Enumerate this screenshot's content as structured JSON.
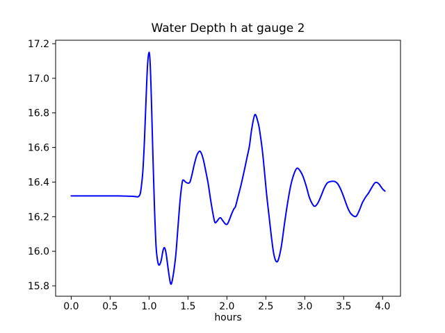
{
  "figure": {
    "background": "#ffffff",
    "text_color": "#000000"
  },
  "chart_data": {
    "type": "line",
    "title": "Water Depth h at gauge 2",
    "xlabel": "hours",
    "ylabel": "",
    "xlim": [
      -0.2,
      4.23
    ],
    "ylim": [
      15.74,
      17.22
    ],
    "xticks": [
      0.0,
      0.5,
      1.0,
      1.5,
      2.0,
      2.5,
      3.0,
      3.5,
      4.0
    ],
    "xtick_labels": [
      "0.0",
      "0.5",
      "1.0",
      "1.5",
      "2.0",
      "2.5",
      "3.0",
      "3.5",
      "4.0"
    ],
    "yticks": [
      15.8,
      16.0,
      16.2,
      16.4,
      16.6,
      16.8,
      17.0,
      17.2
    ],
    "ytick_labels": [
      "15.8",
      "16.0",
      "16.2",
      "16.4",
      "16.6",
      "16.8",
      "17.0",
      "17.2"
    ],
    "grid": false,
    "legend": null,
    "series": [
      {
        "name": "h",
        "color": "#0000ff",
        "line_width": 2,
        "points": [
          [
            0.0,
            16.32
          ],
          [
            0.1,
            16.32
          ],
          [
            0.2,
            16.32
          ],
          [
            0.3,
            16.32
          ],
          [
            0.4,
            16.32
          ],
          [
            0.5,
            16.32
          ],
          [
            0.6,
            16.32
          ],
          [
            0.7,
            16.319
          ],
          [
            0.78,
            16.318
          ],
          [
            0.83,
            16.316
          ],
          [
            0.86,
            16.315
          ],
          [
            0.885,
            16.33
          ],
          [
            0.9,
            16.37
          ],
          [
            0.92,
            16.46
          ],
          [
            0.94,
            16.63
          ],
          [
            0.96,
            16.86
          ],
          [
            0.98,
            17.07
          ],
          [
            1.0,
            17.15
          ],
          [
            1.015,
            17.08
          ],
          [
            1.03,
            16.88
          ],
          [
            1.05,
            16.55
          ],
          [
            1.07,
            16.25
          ],
          [
            1.09,
            16.03
          ],
          [
            1.11,
            15.945
          ],
          [
            1.13,
            15.92
          ],
          [
            1.155,
            15.945
          ],
          [
            1.18,
            16.005
          ],
          [
            1.2,
            16.02
          ],
          [
            1.22,
            15.985
          ],
          [
            1.245,
            15.9
          ],
          [
            1.27,
            15.825
          ],
          [
            1.285,
            15.81
          ],
          [
            1.3,
            15.835
          ],
          [
            1.32,
            15.89
          ],
          [
            1.345,
            15.985
          ],
          [
            1.37,
            16.13
          ],
          [
            1.4,
            16.3
          ],
          [
            1.425,
            16.395
          ],
          [
            1.44,
            16.412
          ],
          [
            1.47,
            16.4
          ],
          [
            1.5,
            16.394
          ],
          [
            1.525,
            16.4
          ],
          [
            1.55,
            16.44
          ],
          [
            1.58,
            16.5
          ],
          [
            1.61,
            16.55
          ],
          [
            1.635,
            16.573
          ],
          [
            1.655,
            16.578
          ],
          [
            1.675,
            16.563
          ],
          [
            1.7,
            16.525
          ],
          [
            1.73,
            16.46
          ],
          [
            1.76,
            16.39
          ],
          [
            1.79,
            16.3
          ],
          [
            1.82,
            16.22
          ],
          [
            1.845,
            16.168
          ],
          [
            1.87,
            16.172
          ],
          [
            1.9,
            16.19
          ],
          [
            1.92,
            16.193
          ],
          [
            1.95,
            16.175
          ],
          [
            1.98,
            16.158
          ],
          [
            2.005,
            16.157
          ],
          [
            2.03,
            16.18
          ],
          [
            2.06,
            16.215
          ],
          [
            2.09,
            16.245
          ],
          [
            2.11,
            16.258
          ],
          [
            2.14,
            16.31
          ],
          [
            2.18,
            16.38
          ],
          [
            2.22,
            16.46
          ],
          [
            2.26,
            16.545
          ],
          [
            2.29,
            16.61
          ],
          [
            2.32,
            16.71
          ],
          [
            2.36,
            16.79
          ],
          [
            2.4,
            16.745
          ],
          [
            2.42,
            16.7
          ],
          [
            2.46,
            16.565
          ],
          [
            2.51,
            16.33
          ],
          [
            2.54,
            16.21
          ],
          [
            2.57,
            16.09
          ],
          [
            2.6,
            15.99
          ],
          [
            2.63,
            15.943
          ],
          [
            2.66,
            15.95
          ],
          [
            2.7,
            16.03
          ],
          [
            2.74,
            16.16
          ],
          [
            2.78,
            16.28
          ],
          [
            2.82,
            16.38
          ],
          [
            2.86,
            16.445
          ],
          [
            2.9,
            16.48
          ],
          [
            2.94,
            16.465
          ],
          [
            2.98,
            16.43
          ],
          [
            3.02,
            16.375
          ],
          [
            3.06,
            16.31
          ],
          [
            3.1,
            16.272
          ],
          [
            3.13,
            16.26
          ],
          [
            3.17,
            16.28
          ],
          [
            3.21,
            16.32
          ],
          [
            3.25,
            16.365
          ],
          [
            3.29,
            16.395
          ],
          [
            3.33,
            16.403
          ],
          [
            3.38,
            16.404
          ],
          [
            3.42,
            16.392
          ],
          [
            3.46,
            16.36
          ],
          [
            3.5,
            16.315
          ],
          [
            3.54,
            16.265
          ],
          [
            3.58,
            16.225
          ],
          [
            3.62,
            16.206
          ],
          [
            3.66,
            16.202
          ],
          [
            3.7,
            16.235
          ],
          [
            3.74,
            16.28
          ],
          [
            3.78,
            16.312
          ],
          [
            3.82,
            16.337
          ],
          [
            3.86,
            16.368
          ],
          [
            3.9,
            16.395
          ],
          [
            3.93,
            16.397
          ],
          [
            3.96,
            16.385
          ],
          [
            4.0,
            16.36
          ],
          [
            4.03,
            16.348
          ]
        ]
      }
    ]
  }
}
